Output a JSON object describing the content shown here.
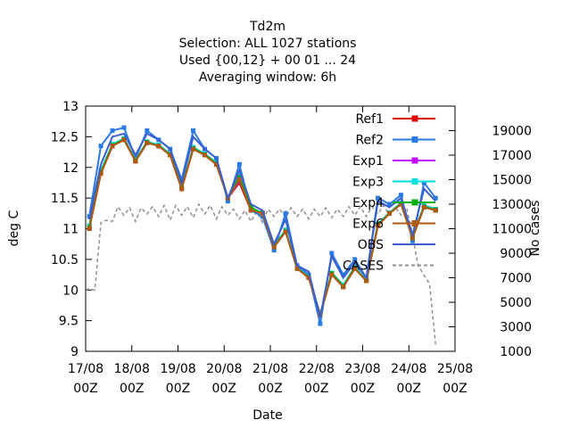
{
  "chart_data": {
    "type": "line",
    "title_lines": [
      "Td2m",
      "Selection: ALL    1027 stations",
      "Used {00,12} + 00 01 ... 24",
      "Averaging window:  6h"
    ],
    "xlabel": "Date",
    "ylabel": "deg C",
    "y2label": "No cases",
    "xlim": [
      0,
      8
    ],
    "ylim": [
      9,
      13
    ],
    "y2lim": [
      1000,
      21000
    ],
    "x_ticks": [
      {
        "pos": 0,
        "line1": "17/08",
        "line2": "00Z"
      },
      {
        "pos": 1,
        "line1": "18/08",
        "line2": "00Z"
      },
      {
        "pos": 2,
        "line1": "19/08",
        "line2": "00Z"
      },
      {
        "pos": 3,
        "line1": "20/08",
        "line2": "00Z"
      },
      {
        "pos": 4,
        "line1": "21/08",
        "line2": "00Z"
      },
      {
        "pos": 5,
        "line1": "22/08",
        "line2": "00Z"
      },
      {
        "pos": 6,
        "line1": "23/08",
        "line2": "00Z"
      },
      {
        "pos": 7,
        "line1": "24/08",
        "line2": "00Z"
      },
      {
        "pos": 8,
        "line1": "25/08",
        "line2": "00Z"
      }
    ],
    "y_ticks": [
      9,
      9.5,
      10,
      10.5,
      11,
      11.5,
      12,
      12.5,
      13
    ],
    "y_tick_labels": [
      "9",
      "9.5",
      "10",
      "10.5",
      "11",
      "11.5",
      "12",
      "12.5",
      "13"
    ],
    "y2_ticks": [
      1000,
      3000,
      5000,
      7000,
      9000,
      11000,
      13000,
      15000,
      17000,
      19000
    ],
    "y2_tick_labels": [
      "1000",
      "3000",
      "5000",
      "7000",
      "9000",
      "11000",
      "13000",
      "15000",
      "17000",
      "19000"
    ],
    "x": [
      0.08,
      0.33,
      0.58,
      0.83,
      1.08,
      1.33,
      1.58,
      1.83,
      2.08,
      2.33,
      2.58,
      2.83,
      3.08,
      3.33,
      3.58,
      3.83,
      4.08,
      4.33,
      4.58,
      4.83,
      5.08,
      5.33,
      5.58,
      5.83,
      6.08,
      6.33,
      6.58,
      6.83,
      7.08,
      7.33,
      7.58
    ],
    "series": [
      {
        "name": "Ref1",
        "color": "#e00000",
        "marker": "square",
        "values": [
          11.0,
          11.9,
          12.35,
          12.45,
          12.1,
          12.4,
          12.35,
          12.2,
          11.65,
          12.3,
          12.2,
          12.05,
          11.5,
          11.75,
          11.3,
          11.25,
          10.7,
          10.95,
          10.35,
          10.2,
          9.6,
          10.25,
          10.05,
          10.35,
          10.15,
          11.05,
          11.25,
          11.4,
          10.85,
          11.35,
          11.3
        ]
      },
      {
        "name": "Ref2",
        "color": "#2a7ae6",
        "marker": "square",
        "values": [
          11.2,
          12.35,
          12.6,
          12.65,
          12.15,
          12.6,
          12.45,
          12.3,
          11.8,
          12.6,
          12.3,
          12.15,
          11.45,
          12.05,
          11.3,
          11.2,
          10.65,
          11.25,
          10.4,
          10.25,
          9.45,
          10.6,
          10.25,
          10.5,
          10.2,
          11.5,
          11.4,
          11.55,
          10.8,
          11.75,
          11.5
        ]
      },
      {
        "name": "Exp1",
        "color": "#c000ff",
        "marker": "square",
        "values": [
          11.05,
          11.95,
          12.37,
          12.47,
          12.12,
          12.42,
          12.36,
          12.22,
          11.68,
          12.32,
          12.22,
          12.08,
          11.5,
          11.78,
          11.32,
          11.26,
          10.72,
          10.98,
          10.36,
          10.22,
          9.6,
          10.28,
          10.08,
          10.38,
          10.16,
          11.08,
          11.26,
          11.42,
          10.86,
          11.38,
          11.32
        ]
      },
      {
        "name": "Exp3",
        "color": "#00e0e0",
        "marker": "square",
        "values": [
          11.05,
          11.95,
          12.38,
          12.47,
          12.12,
          12.42,
          12.37,
          12.22,
          11.68,
          12.33,
          12.22,
          12.08,
          11.5,
          11.8,
          11.32,
          11.26,
          10.72,
          10.98,
          10.36,
          10.22,
          9.6,
          10.28,
          10.08,
          10.38,
          10.16,
          11.08,
          11.26,
          11.42,
          10.86,
          11.38,
          11.32
        ]
      },
      {
        "name": "Exp4",
        "color": "#00b000",
        "marker": "square",
        "values": [
          11.02,
          11.92,
          12.36,
          12.46,
          12.11,
          12.41,
          12.35,
          12.21,
          11.66,
          12.31,
          12.21,
          12.06,
          11.5,
          11.85,
          11.35,
          11.25,
          10.71,
          10.96,
          10.35,
          10.21,
          9.6,
          10.27,
          10.06,
          10.36,
          10.15,
          11.06,
          11.25,
          11.41,
          10.85,
          11.36,
          11.31
        ]
      },
      {
        "name": "Exp6",
        "color": "#b05a10",
        "marker": "square",
        "values": [
          11.0,
          11.9,
          12.35,
          12.45,
          12.1,
          12.4,
          12.35,
          12.2,
          11.65,
          12.3,
          12.2,
          12.05,
          11.5,
          11.8,
          11.3,
          11.25,
          10.7,
          10.95,
          10.35,
          10.2,
          9.6,
          10.25,
          10.05,
          10.35,
          10.15,
          11.05,
          11.25,
          11.4,
          10.85,
          11.35,
          11.3
        ]
      },
      {
        "name": "OBS",
        "color": "#3a5fcd",
        "marker": "none",
        "values": [
          11.15,
          12.05,
          12.5,
          12.55,
          12.2,
          12.55,
          12.45,
          12.3,
          11.75,
          12.5,
          12.3,
          12.15,
          11.5,
          11.95,
          11.4,
          11.3,
          10.75,
          11.15,
          10.4,
          10.3,
          9.55,
          10.55,
          10.2,
          10.45,
          10.2,
          11.45,
          11.35,
          11.5,
          10.9,
          11.65,
          11.45
        ]
      }
    ],
    "cases": {
      "name": "CASES",
      "color": "#909090",
      "axis": "y2",
      "x": [
        0.0,
        0.08,
        0.2,
        0.33,
        0.45,
        0.58,
        0.7,
        0.83,
        0.95,
        1.08,
        1.2,
        1.33,
        1.45,
        1.58,
        1.7,
        1.83,
        1.95,
        2.08,
        2.2,
        2.33,
        2.45,
        2.58,
        2.7,
        2.83,
        2.95,
        3.08,
        3.2,
        3.33,
        3.45,
        3.58,
        3.7,
        3.83,
        3.95,
        4.08,
        4.2,
        4.33,
        4.45,
        4.58,
        4.7,
        4.83,
        4.95,
        5.08,
        5.2,
        5.33,
        5.45,
        5.58,
        5.7,
        5.83,
        5.95,
        6.08,
        6.2,
        6.33,
        6.45,
        6.58,
        6.7,
        6.83,
        6.95,
        7.08,
        7.2,
        7.33,
        7.45,
        7.58
      ],
      "values": [
        6000,
        6100,
        6000,
        11500,
        11700,
        11600,
        12800,
        12100,
        12700,
        11600,
        12700,
        12200,
        12800,
        12000,
        12900,
        11700,
        12900,
        12100,
        12800,
        11900,
        13000,
        12200,
        12900,
        11800,
        12800,
        12100,
        12600,
        11800,
        12500,
        11600,
        12400,
        11500,
        12600,
        12000,
        12600,
        11900,
        12700,
        12000,
        12600,
        11800,
        12600,
        12000,
        12700,
        11900,
        12600,
        12000,
        12800,
        12100,
        12800,
        12000,
        12800,
        12200,
        12900,
        12100,
        12800,
        12100,
        12700,
        10500,
        8000,
        7200,
        6500,
        1500
      ]
    },
    "legend_position": "top-right",
    "grid": false
  }
}
